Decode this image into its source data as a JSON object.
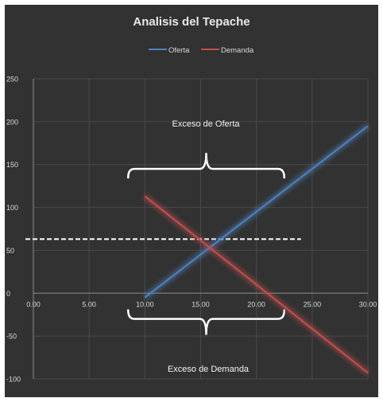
{
  "chart_data": {
    "type": "line",
    "title": "Analisis del Tepache",
    "xlabel": "",
    "ylabel": "",
    "xlim": [
      0,
      30
    ],
    "ylim": [
      -100,
      250
    ],
    "x_ticks": [
      "0.00",
      "5.00",
      "10.00",
      "15.00",
      "20.00",
      "25.00",
      "30.00"
    ],
    "y_ticks": [
      "250",
      "200",
      "150",
      "100",
      "50",
      "0",
      "-50",
      "-100"
    ],
    "grid": true,
    "legend_position": "top-center",
    "series": [
      {
        "name": "Oferta",
        "color": "#4f81bd",
        "x": [
          10,
          30
        ],
        "y": [
          -5,
          195
        ]
      },
      {
        "name": "Demanda",
        "color": "#c0504d",
        "x": [
          10,
          30
        ],
        "y": [
          113,
          -93
        ]
      }
    ],
    "annotations": {
      "reference_line": {
        "y": 63,
        "x_start": 0,
        "x_end": 24,
        "color": "#ffffff",
        "style": "dashed"
      },
      "excess_supply": {
        "label": "Exceso de Oferta",
        "x_start": 8.5,
        "x_end": 22.5,
        "y": 145
      },
      "excess_demand": {
        "label": "Exceso de Demanda",
        "x_start": 8.5,
        "x_end": 22.5,
        "y": -30
      }
    }
  },
  "colors": {
    "background": "#323232",
    "gridline": "#4a4a4a",
    "axis": "#8c8c8c",
    "text": "#d9d9d9",
    "title": "#e8e8e8"
  }
}
